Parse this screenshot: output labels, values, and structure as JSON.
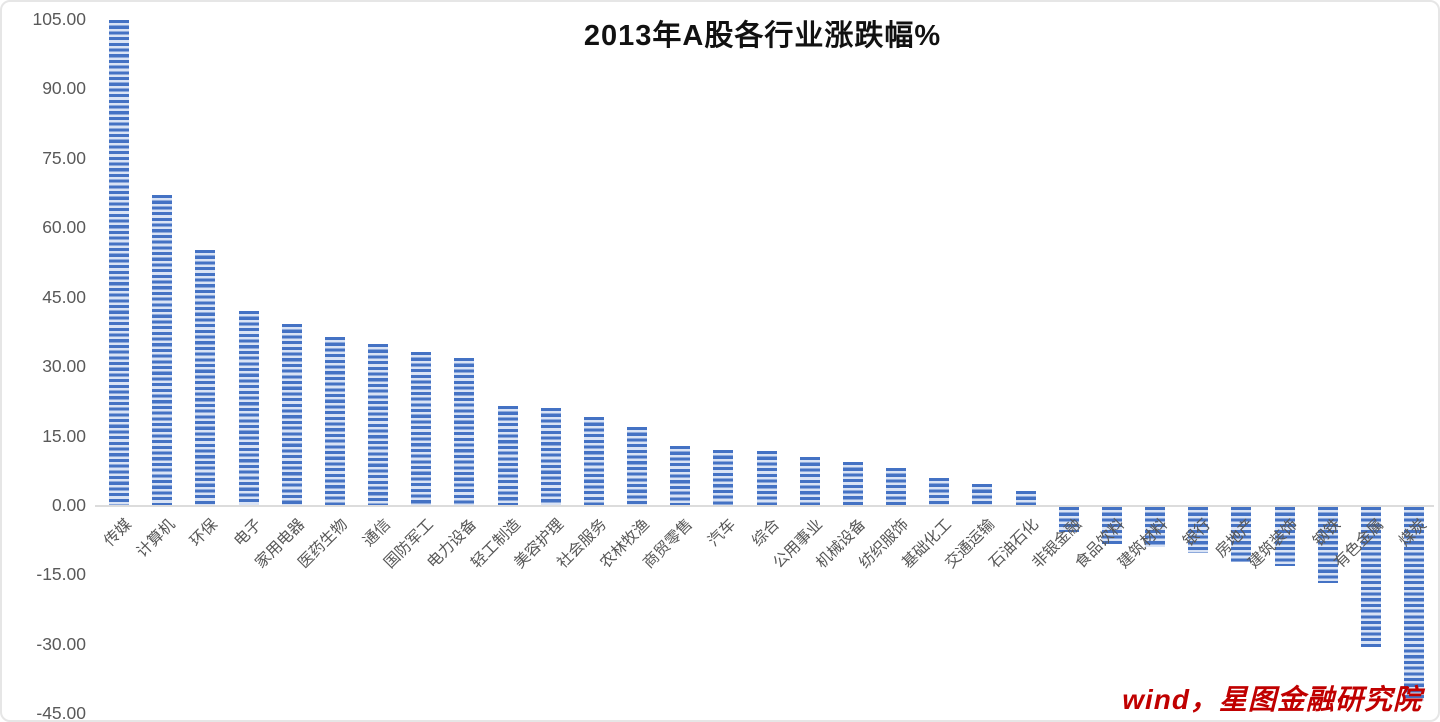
{
  "chart_data": {
    "type": "bar",
    "title": "2013年A股各行业涨跌幅%",
    "xlabel": "",
    "ylabel": "",
    "ylim": [
      -45,
      105
    ],
    "ytick_values": [
      105,
      90,
      75,
      60,
      45,
      30,
      15,
      0,
      -15,
      -30,
      -45
    ],
    "ytick_labels": [
      "105.00",
      "90.00",
      "75.00",
      "60.00",
      "45.00",
      "30.00",
      "15.00",
      "0.00",
      "-15.00",
      "-30.00",
      "-45.00"
    ],
    "grid": false,
    "legend": "none",
    "bar_style": "horizontal-striped",
    "bar_color": "#4472c4",
    "bar_stripe_light_color": "#d9e3f5",
    "axis_label_color": "#595959",
    "title_color": "#111111",
    "watermark_color": "#c00000",
    "source_watermark": "wind，星图金融研究院",
    "categories": [
      "传媒",
      "计算机",
      "环保",
      "电子",
      "家用电器",
      "医药生物",
      "通信",
      "国防军工",
      "电力设备",
      "轻工制造",
      "美容护理",
      "社会服务",
      "农林牧渔",
      "商贸零售",
      "汽车",
      "综合",
      "公用事业",
      "机械设备",
      "纺织服饰",
      "基础化工",
      "交通运输",
      "石油石化",
      "非银金融",
      "食品饮料",
      "建筑材料",
      "银行",
      "房地产",
      "建筑装饰",
      "钢铁",
      "有色金属",
      "煤炭"
    ],
    "values": [
      104.8,
      67.0,
      55.1,
      42.0,
      39.2,
      36.3,
      34.8,
      33.0,
      31.7,
      21.4,
      21.0,
      19.0,
      16.8,
      12.7,
      11.9,
      11.7,
      10.4,
      9.3,
      8.0,
      5.8,
      4.6,
      3.0,
      -5.5,
      -8.0,
      -8.7,
      -10.0,
      -11.9,
      -12.7,
      -16.5,
      -30.2,
      -42.0
    ]
  }
}
